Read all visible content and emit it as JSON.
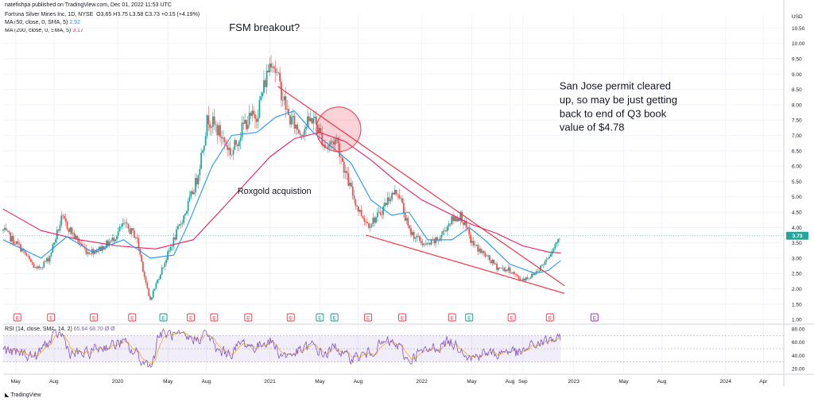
{
  "header": {
    "published": "natefishpa published on TradingView.com, Dec 01, 2022 11:53 UTC",
    "symbol": "Fortuna Silver Mines Inc, 1D, NYSE",
    "ohlc": "O3.65 H3.75 L3.58 C3.73 +0.15 (+4.19%)",
    "ma50_label": "MA (50, close, 0, SMA, 5)",
    "ma50_value": "2.92",
    "ma200_label": "MA (200, close, 0, SMA, 5)",
    "ma200_value": "3.17",
    "rsi_label": "RSI (14, close, SMA, 14, 2)",
    "rsi_values": "65.64  68.70  Ø  Ø",
    "brand": "TradingView"
  },
  "colors": {
    "candle_up": "#26a69a",
    "candle_down": "#ef5350",
    "ma50": "#2196f3",
    "ma200": "#e91e63",
    "trendline": "#f23645",
    "rsi": "#7e57c2",
    "rsi_ma": "#f9a825",
    "price_badge": "#26a69a",
    "earnings": "#f23645",
    "dividend": "#089981",
    "future_earnings": "#9c27b0"
  },
  "chart_data": {
    "type": "candlestick",
    "currency": "USD",
    "x_ticks": [
      "May",
      "Aug",
      "2020",
      "May",
      "Aug",
      "2021",
      "May",
      "Aug",
      "2022",
      "May",
      "Aug",
      "Sep",
      "2023",
      "May",
      "Aug",
      "2024",
      "Apr"
    ],
    "y_ticks": [
      "10.50",
      "10.00",
      "9.50",
      "9.00",
      "8.50",
      "8.00",
      "7.50",
      "7.00",
      "6.50",
      "6.00",
      "5.50",
      "5.00",
      "4.50",
      "4.00",
      "3.50",
      "3.00",
      "2.50",
      "2.00",
      "1.50",
      "1.00"
    ],
    "ylim": [
      0.9,
      10.95
    ],
    "last_price": "3.73",
    "price_path": [
      [
        "2019-04-01",
        3.9
      ],
      [
        "2019-05-15",
        3.3
      ],
      [
        "2019-06-20",
        2.6
      ],
      [
        "2019-07-20",
        3.0
      ],
      [
        "2019-08-20",
        4.3
      ],
      [
        "2019-09-20",
        3.7
      ],
      [
        "2019-10-20",
        3.2
      ],
      [
        "2019-11-20",
        3.3
      ],
      [
        "2019-12-20",
        3.6
      ],
      [
        "2020-01-15",
        4.1
      ],
      [
        "2020-02-15",
        3.7
      ],
      [
        "2020-03-18",
        1.6
      ],
      [
        "2020-04-15",
        2.6
      ],
      [
        "2020-05-15",
        3.6
      ],
      [
        "2020-06-15",
        4.6
      ],
      [
        "2020-07-10",
        5.6
      ],
      [
        "2020-08-05",
        7.6
      ],
      [
        "2020-09-01",
        7.1
      ],
      [
        "2020-10-01",
        6.4
      ],
      [
        "2020-11-01",
        7.4
      ],
      [
        "2020-12-01",
        7.7
      ],
      [
        "2021-01-05",
        9.6
      ],
      [
        "2021-01-25",
        8.6
      ],
      [
        "2021-02-15",
        7.6
      ],
      [
        "2021-03-15",
        7.1
      ],
      [
        "2021-04-15",
        7.6
      ],
      [
        "2021-05-15",
        6.6
      ],
      [
        "2021-06-10",
        6.9
      ],
      [
        "2021-07-05",
        5.6
      ],
      [
        "2021-08-01",
        4.6
      ],
      [
        "2021-08-25",
        4.1
      ],
      [
        "2021-09-20",
        4.4
      ],
      [
        "2021-10-15",
        5.0
      ],
      [
        "2021-11-05",
        5.2
      ],
      [
        "2021-12-01",
        3.9
      ],
      [
        "2022-01-10",
        3.4
      ],
      [
        "2022-02-10",
        3.6
      ],
      [
        "2022-03-10",
        4.2
      ],
      [
        "2022-04-05",
        4.4
      ],
      [
        "2022-05-01",
        3.5
      ],
      [
        "2022-06-01",
        3.1
      ],
      [
        "2022-07-01",
        2.7
      ],
      [
        "2022-08-01",
        2.6
      ],
      [
        "2022-08-25",
        2.3
      ],
      [
        "2022-09-20",
        2.4
      ],
      [
        "2022-10-20",
        2.8
      ],
      [
        "2022-11-15",
        3.4
      ],
      [
        "2022-12-01",
        3.73
      ]
    ],
    "ma50_path": [
      [
        "2019-04-01",
        3.6
      ],
      [
        "2019-07-01",
        3.0
      ],
      [
        "2019-09-01",
        3.7
      ],
      [
        "2019-11-01",
        3.2
      ],
      [
        "2020-01-15",
        3.6
      ],
      [
        "2020-03-20",
        3.0
      ],
      [
        "2020-05-15",
        3.1
      ],
      [
        "2020-06-15",
        4.0
      ],
      [
        "2020-08-15",
        6.0
      ],
      [
        "2020-10-01",
        7.0
      ],
      [
        "2020-12-01",
        7.1
      ],
      [
        "2021-01-15",
        7.6
      ],
      [
        "2021-03-01",
        7.8
      ],
      [
        "2021-04-15",
        7.1
      ],
      [
        "2021-06-01",
        6.6
      ],
      [
        "2021-07-15",
        6.1
      ],
      [
        "2021-09-01",
        4.9
      ],
      [
        "2021-10-20",
        4.4
      ],
      [
        "2021-12-01",
        4.5
      ],
      [
        "2022-01-15",
        3.6
      ],
      [
        "2022-03-15",
        3.6
      ],
      [
        "2022-04-25",
        4.0
      ],
      [
        "2022-06-01",
        3.6
      ],
      [
        "2022-08-01",
        2.8
      ],
      [
        "2022-10-01",
        2.5
      ],
      [
        "2022-11-01",
        2.6
      ],
      [
        "2022-12-01",
        2.92
      ]
    ],
    "ma200_path": [
      [
        "2019-04-01",
        4.6
      ],
      [
        "2019-07-01",
        3.9
      ],
      [
        "2019-10-01",
        3.6
      ],
      [
        "2020-01-01",
        3.4
      ],
      [
        "2020-04-01",
        3.3
      ],
      [
        "2020-07-01",
        3.6
      ],
      [
        "2020-09-01",
        4.5
      ],
      [
        "2020-11-01",
        5.4
      ],
      [
        "2021-01-01",
        6.3
      ],
      [
        "2021-03-01",
        6.9
      ],
      [
        "2021-05-01",
        7.1
      ],
      [
        "2021-07-01",
        6.8
      ],
      [
        "2021-09-01",
        6.2
      ],
      [
        "2021-11-01",
        5.5
      ],
      [
        "2022-01-01",
        4.9
      ],
      [
        "2022-03-01",
        4.5
      ],
      [
        "2022-05-01",
        4.1
      ],
      [
        "2022-07-01",
        3.8
      ],
      [
        "2022-09-01",
        3.4
      ],
      [
        "2022-11-01",
        3.2
      ],
      [
        "2022-12-01",
        3.17
      ]
    ],
    "upper_trendline": [
      [
        "2021-01-20",
        8.6
      ],
      [
        "2022-12-10",
        2.1
      ]
    ],
    "lower_trendline": [
      [
        "2021-08-20",
        3.75
      ],
      [
        "2022-12-10",
        1.85
      ]
    ],
    "circle_marker": {
      "date": "2021-06-15",
      "price": 7.2
    },
    "earnings_markers": [
      {
        "date": "2019-05-05",
        "type": "E"
      },
      {
        "date": "2019-07-25",
        "type": "E"
      },
      {
        "date": "2019-11-05",
        "type": "E"
      },
      {
        "date": "2020-02-05",
        "type": "E"
      },
      {
        "date": "2020-04-20",
        "type": "D"
      },
      {
        "date": "2020-06-25",
        "type": "E"
      },
      {
        "date": "2020-08-20",
        "type": "E"
      },
      {
        "date": "2020-11-10",
        "type": "E"
      },
      {
        "date": "2021-02-20",
        "type": "E"
      },
      {
        "date": "2021-05-01",
        "type": "D"
      },
      {
        "date": "2021-06-05",
        "type": "D"
      },
      {
        "date": "2021-08-25",
        "type": "E"
      },
      {
        "date": "2021-11-15",
        "type": "E"
      },
      {
        "date": "2022-03-15",
        "type": "E"
      },
      {
        "date": "2022-04-25",
        "type": "D"
      },
      {
        "date": "2022-08-05",
        "type": "E"
      },
      {
        "date": "2022-11-05",
        "type": "E"
      },
      {
        "date": "2023-02-20",
        "type": "F"
      }
    ],
    "rsi": {
      "y_ticks": [
        "80.00",
        "60.00",
        "40.00",
        "20.00"
      ],
      "ylim": [
        15,
        85
      ],
      "band": [
        30,
        70
      ],
      "last": 65.64
    },
    "annotations": [
      {
        "text": "FSM breakout?",
        "date": "2020-09-25",
        "price": 10.4
      },
      {
        "text": "Roxgold acquistion",
        "date": "2020-10-15",
        "price": 5.1
      },
      {
        "text": "San Jose permit cleared",
        "date": "2022-11-28",
        "price": 8.5
      },
      {
        "text": "up, so may be just getting",
        "date": "2022-11-28",
        "price": 8.05
      },
      {
        "text": "back to end of Q3 book",
        "date": "2022-11-28",
        "price": 7.6
      },
      {
        "text": "value of $4.78",
        "date": "2022-11-28",
        "price": 7.15
      }
    ]
  }
}
